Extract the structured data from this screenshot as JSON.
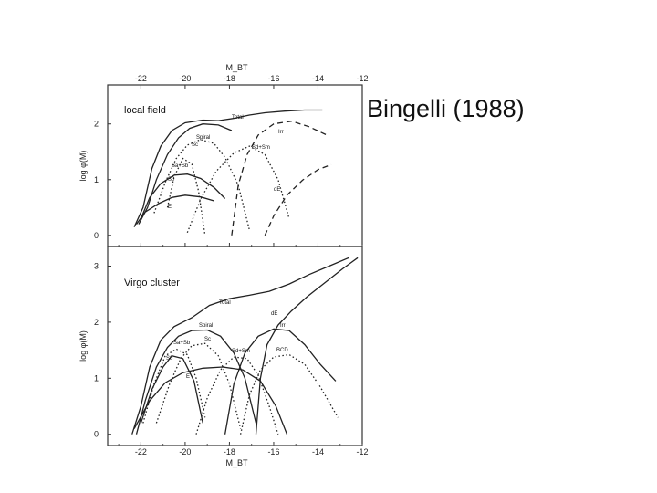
{
  "caption": "Bingelli (1988)",
  "chart_data": [
    {
      "type": "line",
      "title": "local field",
      "xlabel": "M_BT",
      "ylabel": "log φ(M)",
      "xlim": [
        -23.5,
        -12
      ],
      "ylim": [
        -0.2,
        2.7
      ],
      "x_ticks": [
        "-22",
        "-20",
        "-18",
        "-16",
        "-14",
        "-12"
      ],
      "y_ticks": [
        "0",
        "1",
        "2"
      ],
      "series": [
        {
          "name": "Total",
          "dash": "solid",
          "points": [
            [
              -22.3,
              0.15
            ],
            [
              -21.9,
              0.5
            ],
            [
              -21.5,
              1.2
            ],
            [
              -21.1,
              1.6
            ],
            [
              -20.6,
              1.88
            ],
            [
              -20,
              2.02
            ],
            [
              -19.2,
              2.07
            ],
            [
              -18.5,
              2.06
            ],
            [
              -17.8,
              2.1
            ],
            [
              -17.1,
              2.16
            ],
            [
              -16.4,
              2.2
            ],
            [
              -15.5,
              2.23
            ],
            [
              -14.6,
              2.25
            ],
            [
              -13.8,
              2.25
            ]
          ]
        },
        {
          "name": "Spiral",
          "dash": "solid",
          "points": [
            [
              -22.1,
              0.2
            ],
            [
              -21.7,
              0.5
            ],
            [
              -21.3,
              1.0
            ],
            [
              -20.8,
              1.45
            ],
            [
              -20.3,
              1.75
            ],
            [
              -19.8,
              1.92
            ],
            [
              -19.2,
              2.0
            ],
            [
              -18.5,
              1.98
            ],
            [
              -17.9,
              1.88
            ]
          ]
        },
        {
          "name": "Sc",
          "dash": "dotted",
          "points": [
            [
              -21.4,
              0.4
            ],
            [
              -20.9,
              0.95
            ],
            [
              -20.4,
              1.38
            ],
            [
              -19.9,
              1.62
            ],
            [
              -19.3,
              1.72
            ],
            [
              -18.7,
              1.65
            ],
            [
              -18.2,
              1.4
            ],
            [
              -17.6,
              0.9
            ],
            [
              -17.1,
              0.1
            ]
          ]
        },
        {
          "name": "Sa+Sb",
          "dash": "dotted",
          "points": [
            [
              -20.8,
              0.5
            ],
            [
              -20.5,
              1.05
            ],
            [
              -20.1,
              1.38
            ],
            [
              -19.7,
              1.28
            ],
            [
              -19.4,
              0.8
            ],
            [
              -19.1,
              0.0
            ]
          ]
        },
        {
          "name": "S0",
          "dash": "solid",
          "points": [
            [
              -22.0,
              0.3
            ],
            [
              -21.6,
              0.68
            ],
            [
              -21.1,
              0.93
            ],
            [
              -20.5,
              1.08
            ],
            [
              -19.9,
              1.1
            ],
            [
              -19.3,
              1.02
            ],
            [
              -18.7,
              0.86
            ],
            [
              -18.2,
              0.66
            ]
          ]
        },
        {
          "name": "E",
          "dash": "solid",
          "points": [
            [
              -22.2,
              0.2
            ],
            [
              -21.8,
              0.42
            ],
            [
              -21.2,
              0.57
            ],
            [
              -20.6,
              0.68
            ],
            [
              -20,
              0.72
            ],
            [
              -19.3,
              0.69
            ],
            [
              -18.7,
              0.62
            ]
          ]
        },
        {
          "name": "Sd+Sm",
          "dash": "dotted",
          "points": [
            [
              -19.9,
              0.05
            ],
            [
              -19.3,
              0.65
            ],
            [
              -18.6,
              1.15
            ],
            [
              -17.8,
              1.48
            ],
            [
              -17.1,
              1.6
            ],
            [
              -16.4,
              1.45
            ],
            [
              -15.8,
              1.0
            ],
            [
              -15.3,
              0.3
            ]
          ]
        },
        {
          "name": "Irr",
          "dash": "dashed",
          "points": [
            [
              -17.9,
              0.0
            ],
            [
              -17.6,
              0.9
            ],
            [
              -17.2,
              1.45
            ],
            [
              -16.7,
              1.8
            ],
            [
              -16.0,
              2.0
            ],
            [
              -15.2,
              2.05
            ],
            [
              -14.4,
              1.95
            ],
            [
              -13.6,
              1.8
            ]
          ]
        },
        {
          "name": "dE",
          "dash": "dashed",
          "points": [
            [
              -16.4,
              0.0
            ],
            [
              -16.0,
              0.35
            ],
            [
              -15.4,
              0.72
            ],
            [
              -14.7,
              0.99
            ],
            [
              -14.0,
              1.18
            ],
            [
              -13.4,
              1.27
            ]
          ]
        }
      ],
      "curve_labels": [
        {
          "series": "Total",
          "text": "Total"
        },
        {
          "series": "Spiral",
          "text": "Spiral"
        },
        {
          "series": "Sc",
          "text": "Sc"
        },
        {
          "series": "Sa+Sb",
          "text": "Sa+Sb"
        },
        {
          "series": "S0",
          "text": "S0"
        },
        {
          "series": "E",
          "text": "E"
        },
        {
          "series": "Sd+Sm",
          "text": "Sd+Sm"
        },
        {
          "series": "Irr",
          "text": "Irr"
        },
        {
          "series": "dE",
          "text": "dE"
        }
      ]
    },
    {
      "type": "line",
      "title": "Virgo cluster",
      "xlabel": "M_BT",
      "ylabel": "log φ(M)",
      "xlim": [
        -23.5,
        -12
      ],
      "ylim": [
        -0.2,
        3.35
      ],
      "x_ticks": [
        "-22",
        "-20",
        "-18",
        "-16",
        "-14",
        "-12"
      ],
      "y_ticks": [
        "0",
        "1",
        "2",
        "3"
      ],
      "series": [
        {
          "name": "Total",
          "dash": "solid",
          "points": [
            [
              -22.4,
              0.0
            ],
            [
              -22.0,
              0.5
            ],
            [
              -21.6,
              1.2
            ],
            [
              -21.1,
              1.68
            ],
            [
              -20.5,
              1.92
            ],
            [
              -19.7,
              2.08
            ],
            [
              -18.9,
              2.3
            ],
            [
              -18.0,
              2.42
            ],
            [
              -17.1,
              2.48
            ],
            [
              -16.2,
              2.55
            ],
            [
              -15.3,
              2.68
            ],
            [
              -14.4,
              2.85
            ],
            [
              -13.5,
              3.0
            ],
            [
              -12.6,
              3.15
            ]
          ]
        },
        {
          "name": "Spiral",
          "dash": "solid",
          "points": [
            [
              -22.2,
              0.0
            ],
            [
              -21.8,
              0.6
            ],
            [
              -21.3,
              1.2
            ],
            [
              -20.8,
              1.55
            ],
            [
              -20.3,
              1.75
            ],
            [
              -19.7,
              1.85
            ],
            [
              -19.0,
              1.86
            ],
            [
              -18.4,
              1.75
            ],
            [
              -17.8,
              1.45
            ],
            [
              -17.3,
              1.0
            ],
            [
              -16.8,
              0.2
            ]
          ]
        },
        {
          "name": "Sc",
          "dash": "dotted",
          "points": [
            [
              -21.3,
              0.2
            ],
            [
              -20.7,
              0.9
            ],
            [
              -20.2,
              1.35
            ],
            [
              -19.7,
              1.58
            ],
            [
              -19.1,
              1.62
            ],
            [
              -18.5,
              1.4
            ],
            [
              -18.0,
              0.9
            ],
            [
              -17.5,
              0.1
            ]
          ]
        },
        {
          "name": "Sa+Sb",
          "dash": "dotted",
          "points": [
            [
              -21.9,
              0.2
            ],
            [
              -21.4,
              0.9
            ],
            [
              -20.9,
              1.4
            ],
            [
              -20.4,
              1.52
            ],
            [
              -19.9,
              1.42
            ],
            [
              -19.5,
              1.0
            ],
            [
              -19.1,
              0.3
            ]
          ]
        },
        {
          "name": "S0",
          "dash": "solid",
          "points": [
            [
              -22.0,
              0.2
            ],
            [
              -21.5,
              0.8
            ],
            [
              -21.0,
              1.2
            ],
            [
              -20.6,
              1.4
            ],
            [
              -20.1,
              1.35
            ],
            [
              -19.6,
              0.95
            ],
            [
              -19.2,
              0.2
            ]
          ]
        },
        {
          "name": "E",
          "dash": "solid",
          "points": [
            [
              -22.3,
              0.1
            ],
            [
              -21.6,
              0.6
            ],
            [
              -20.9,
              0.92
            ],
            [
              -20.1,
              1.1
            ],
            [
              -19.2,
              1.18
            ],
            [
              -18.3,
              1.2
            ],
            [
              -17.4,
              1.15
            ],
            [
              -16.6,
              0.95
            ],
            [
              -15.9,
              0.5
            ],
            [
              -15.4,
              0.0
            ]
          ]
        },
        {
          "name": "Sd+Sm",
          "dash": "dotted",
          "points": [
            [
              -19.5,
              0.0
            ],
            [
              -19.0,
              0.65
            ],
            [
              -18.4,
              1.15
            ],
            [
              -17.8,
              1.38
            ],
            [
              -17.2,
              1.35
            ],
            [
              -16.7,
              1.05
            ],
            [
              -16.2,
              0.5
            ],
            [
              -15.8,
              0.0
            ]
          ]
        },
        {
          "name": "BCD",
          "dash": "dotted",
          "points": [
            [
              -17.5,
              0.0
            ],
            [
              -17.1,
              0.7
            ],
            [
              -16.6,
              1.15
            ],
            [
              -16.0,
              1.38
            ],
            [
              -15.3,
              1.42
            ],
            [
              -14.6,
              1.25
            ],
            [
              -13.9,
              0.85
            ],
            [
              -13.1,
              0.3
            ]
          ]
        },
        {
          "name": "Irr",
          "dash": "solid",
          "points": [
            [
              -18.2,
              0.0
            ],
            [
              -17.8,
              0.9
            ],
            [
              -17.3,
              1.45
            ],
            [
              -16.7,
              1.75
            ],
            [
              -16.0,
              1.88
            ],
            [
              -15.3,
              1.85
            ],
            [
              -14.6,
              1.6
            ],
            [
              -13.9,
              1.25
            ],
            [
              -13.2,
              0.95
            ]
          ]
        },
        {
          "name": "dE",
          "dash": "solid",
          "points": [
            [
              -16.8,
              0.0
            ],
            [
              -16.6,
              1.0
            ],
            [
              -16.3,
              1.6
            ],
            [
              -15.8,
              1.95
            ],
            [
              -15.2,
              2.2
            ],
            [
              -14.5,
              2.45
            ],
            [
              -13.7,
              2.7
            ],
            [
              -12.9,
              2.95
            ],
            [
              -12.2,
              3.15
            ]
          ]
        }
      ],
      "curve_labels": [
        {
          "series": "Total",
          "text": "Total"
        },
        {
          "series": "Spiral",
          "text": "Spiral"
        },
        {
          "series": "Sc",
          "text": "Sc"
        },
        {
          "series": "Sa+Sb",
          "text": "Sa+Sb"
        },
        {
          "series": "S0",
          "text": "S0"
        },
        {
          "series": "E",
          "text": "E"
        },
        {
          "series": "Sd+Sm",
          "text": "Sd+Sm"
        },
        {
          "series": "BCD",
          "text": "BCD"
        },
        {
          "series": "Irr",
          "text": "Irr"
        },
        {
          "series": "dE",
          "text": "dE"
        }
      ]
    }
  ]
}
